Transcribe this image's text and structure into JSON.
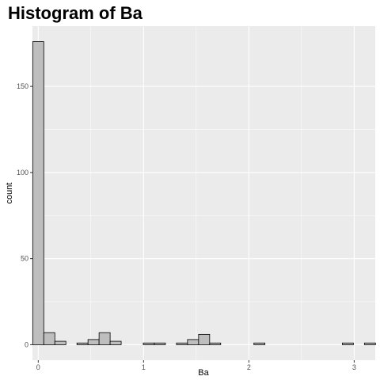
{
  "chart_data": {
    "type": "bar",
    "title": "Histogram of Ba",
    "xlabel": "Ba",
    "ylabel": "count",
    "bin_width": 0.105,
    "bin_centers": [
      0,
      0.105,
      0.21,
      0.315,
      0.42,
      0.525,
      0.63,
      0.735,
      0.84,
      0.945,
      1.05,
      1.155,
      1.26,
      1.365,
      1.47,
      1.575,
      1.68,
      1.785,
      1.89,
      1.995,
      2.1,
      2.205,
      2.31,
      2.415,
      2.52,
      2.625,
      2.73,
      2.835,
      2.94,
      3.045,
      3.15
    ],
    "values": [
      176,
      7,
      2,
      0,
      1,
      3,
      7,
      2,
      0,
      0,
      1,
      1,
      0,
      1,
      3,
      6,
      1,
      0,
      0,
      0,
      1,
      0,
      0,
      0,
      0,
      0,
      0,
      0,
      1,
      0,
      1
    ],
    "xlim": [
      -0.055,
      3.2
    ],
    "ylim": [
      -9,
      185
    ],
    "x_ticks": [
      0,
      1,
      2,
      3
    ],
    "x_tick_labels": [
      "0",
      "1",
      "2",
      "3"
    ],
    "y_ticks": [
      0,
      50,
      100,
      150
    ],
    "y_tick_labels": [
      "0",
      "50",
      "100",
      "150"
    ],
    "grid": true,
    "panel_color": "#ebebeb",
    "grid_color": "#ffffff",
    "bar_fill": "#bebebe",
    "bar_stroke": "#000000"
  }
}
